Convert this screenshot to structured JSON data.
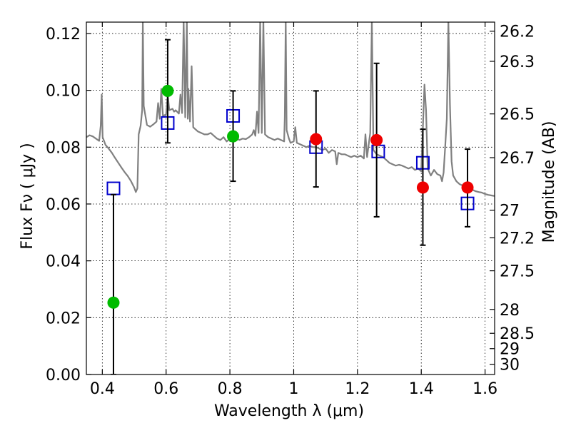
{
  "chart_data": {
    "type": "scatter",
    "xlabel": "Wavelength  λ (μm)",
    "ylabel": "Flux  Fν  ( μJy )",
    "y2label": "Magnitude (AB)",
    "xlim": [
      0.35,
      1.63
    ],
    "ylim": [
      0.0,
      0.124
    ],
    "grid": true,
    "x_ticks": [
      0.4,
      0.6,
      0.8,
      1.0,
      1.2,
      1.4,
      1.6
    ],
    "x_tick_labels": [
      "0.4",
      "0.6",
      "0.8",
      "1",
      "1.2",
      "1.4",
      "1.6"
    ],
    "y_ticks": [
      0.0,
      0.02,
      0.04,
      0.06,
      0.08,
      0.1,
      0.12
    ],
    "y_tick_labels": [
      "0.00",
      "0.02",
      "0.04",
      "0.06",
      "0.08",
      "0.10",
      "0.12"
    ],
    "right_axis_ticks": [
      {
        "label": "26.2",
        "flux": 0.1208
      },
      {
        "label": "26.3",
        "flux": 0.1102
      },
      {
        "label": "26.5",
        "flux": 0.0917
      },
      {
        "label": "26.7",
        "flux": 0.0763
      },
      {
        "label": "27",
        "flux": 0.0578
      },
      {
        "label": "27.2",
        "flux": 0.0481
      },
      {
        "label": "27.5",
        "flux": 0.0365
      },
      {
        "label": "28",
        "flux": 0.0229
      },
      {
        "label": "28.5",
        "flux": 0.0145
      },
      {
        "label": "29",
        "flux": 0.0091
      },
      {
        "label": "30",
        "flux": 0.0036
      }
    ],
    "series": [
      {
        "kind": "line",
        "color": "#808080",
        "points": [
          [
            0.35,
            0.0835
          ],
          [
            0.36,
            0.0842
          ],
          [
            0.37,
            0.0838
          ],
          [
            0.38,
            0.083
          ],
          [
            0.39,
            0.0822
          ],
          [
            0.395,
            0.0875
          ],
          [
            0.398,
            0.0985
          ],
          [
            0.401,
            0.0835
          ],
          [
            0.41,
            0.0808
          ],
          [
            0.42,
            0.0795
          ],
          [
            0.43,
            0.078
          ],
          [
            0.44,
            0.0762
          ],
          [
            0.45,
            0.0745
          ],
          [
            0.46,
            0.0728
          ],
          [
            0.47,
            0.0712
          ],
          [
            0.48,
            0.0698
          ],
          [
            0.49,
            0.068
          ],
          [
            0.5,
            0.0658
          ],
          [
            0.505,
            0.0642
          ],
          [
            0.51,
            0.0655
          ],
          [
            0.514,
            0.0845
          ],
          [
            0.52,
            0.0875
          ],
          [
            0.525,
            0.093
          ],
          [
            0.527,
            0.1245
          ],
          [
            0.53,
            0.0945
          ],
          [
            0.54,
            0.0878
          ],
          [
            0.55,
            0.0872
          ],
          [
            0.56,
            0.088
          ],
          [
            0.57,
            0.089
          ],
          [
            0.575,
            0.0955
          ],
          [
            0.58,
            0.09
          ],
          [
            0.585,
            0.1005
          ],
          [
            0.59,
            0.091
          ],
          [
            0.6,
            0.0915
          ],
          [
            0.605,
            0.0985
          ],
          [
            0.61,
            0.093
          ],
          [
            0.62,
            0.0935
          ],
          [
            0.625,
            0.0925
          ],
          [
            0.63,
            0.093
          ],
          [
            0.64,
            0.0918
          ],
          [
            0.645,
            0.0985
          ],
          [
            0.65,
            0.092
          ],
          [
            0.655,
            0.1245
          ],
          [
            0.66,
            0.0905
          ],
          [
            0.665,
            0.1245
          ],
          [
            0.668,
            0.09
          ],
          [
            0.67,
            0.1005
          ],
          [
            0.675,
            0.089
          ],
          [
            0.68,
            0.1085
          ],
          [
            0.685,
            0.087
          ],
          [
            0.69,
            0.0865
          ],
          [
            0.7,
            0.0855
          ],
          [
            0.71,
            0.085
          ],
          [
            0.72,
            0.0845
          ],
          [
            0.73,
            0.0845
          ],
          [
            0.74,
            0.085
          ],
          [
            0.75,
            0.084
          ],
          [
            0.76,
            0.083
          ],
          [
            0.77,
            0.0825
          ],
          [
            0.78,
            0.0835
          ],
          [
            0.79,
            0.082
          ],
          [
            0.8,
            0.083
          ],
          [
            0.81,
            0.0825
          ],
          [
            0.82,
            0.0832
          ],
          [
            0.83,
            0.0825
          ],
          [
            0.84,
            0.083
          ],
          [
            0.85,
            0.0828
          ],
          [
            0.86,
            0.0835
          ],
          [
            0.87,
            0.0845
          ],
          [
            0.875,
            0.086
          ],
          [
            0.88,
            0.084
          ],
          [
            0.885,
            0.0925
          ],
          [
            0.89,
            0.085
          ],
          [
            0.895,
            0.1245
          ],
          [
            0.9,
            0.085
          ],
          [
            0.905,
            0.1245
          ],
          [
            0.91,
            0.0845
          ],
          [
            0.92,
            0.0835
          ],
          [
            0.93,
            0.083
          ],
          [
            0.94,
            0.0825
          ],
          [
            0.95,
            0.083
          ],
          [
            0.96,
            0.0825
          ],
          [
            0.97,
            0.082
          ],
          [
            0.972,
            0.0905
          ],
          [
            0.975,
            0.1245
          ],
          [
            0.978,
            0.086
          ],
          [
            0.985,
            0.083
          ],
          [
            0.99,
            0.0815
          ],
          [
            1.0,
            0.082
          ],
          [
            1.005,
            0.087
          ],
          [
            1.01,
            0.0815
          ],
          [
            1.02,
            0.081
          ],
          [
            1.03,
            0.0805
          ],
          [
            1.04,
            0.08
          ],
          [
            1.05,
            0.0805
          ],
          [
            1.06,
            0.08
          ],
          [
            1.07,
            0.08
          ],
          [
            1.08,
            0.0795
          ],
          [
            1.09,
            0.079
          ],
          [
            1.1,
            0.0795
          ],
          [
            1.11,
            0.078
          ],
          [
            1.12,
            0.079
          ],
          [
            1.13,
            0.0785
          ],
          [
            1.135,
            0.074
          ],
          [
            1.14,
            0.078
          ],
          [
            1.15,
            0.0775
          ],
          [
            1.16,
            0.0775
          ],
          [
            1.17,
            0.077
          ],
          [
            1.18,
            0.0765
          ],
          [
            1.19,
            0.077
          ],
          [
            1.2,
            0.0765
          ],
          [
            1.21,
            0.077
          ],
          [
            1.22,
            0.076
          ],
          [
            1.225,
            0.0845
          ],
          [
            1.23,
            0.0765
          ],
          [
            1.24,
            0.085
          ],
          [
            1.245,
            0.1245
          ],
          [
            1.25,
            0.079
          ],
          [
            1.26,
            0.0775
          ],
          [
            1.27,
            0.077
          ],
          [
            1.28,
            0.0765
          ],
          [
            1.29,
            0.0755
          ],
          [
            1.3,
            0.0745
          ],
          [
            1.31,
            0.074
          ],
          [
            1.32,
            0.0735
          ],
          [
            1.33,
            0.0738
          ],
          [
            1.34,
            0.0735
          ],
          [
            1.35,
            0.073
          ],
          [
            1.36,
            0.0725
          ],
          [
            1.37,
            0.073
          ],
          [
            1.38,
            0.072
          ],
          [
            1.39,
            0.0725
          ],
          [
            1.4,
            0.0715
          ],
          [
            1.405,
            0.087
          ],
          [
            1.41,
            0.102
          ],
          [
            1.415,
            0.093
          ],
          [
            1.42,
            0.0725
          ],
          [
            1.43,
            0.07
          ],
          [
            1.44,
            0.072
          ],
          [
            1.45,
            0.0705
          ],
          [
            1.46,
            0.07
          ],
          [
            1.465,
            0.068
          ],
          [
            1.47,
            0.071
          ],
          [
            1.475,
            0.08
          ],
          [
            1.48,
            0.09
          ],
          [
            1.485,
            0.1245
          ],
          [
            1.49,
            0.095
          ],
          [
            1.495,
            0.075
          ],
          [
            1.5,
            0.07
          ],
          [
            1.51,
            0.068
          ],
          [
            1.52,
            0.067
          ],
          [
            1.53,
            0.0665
          ],
          [
            1.54,
            0.066
          ],
          [
            1.55,
            0.0655
          ],
          [
            1.56,
            0.065
          ],
          [
            1.57,
            0.0645
          ],
          [
            1.58,
            0.0642
          ],
          [
            1.59,
            0.064
          ],
          [
            1.6,
            0.0635
          ],
          [
            1.61,
            0.0632
          ],
          [
            1.62,
            0.063
          ],
          [
            1.63,
            0.0628
          ]
        ]
      },
      {
        "kind": "open-square",
        "color": "#0000cc",
        "points": [
          [
            0.435,
            0.0655
          ],
          [
            0.605,
            0.0885
          ],
          [
            0.81,
            0.091
          ],
          [
            1.07,
            0.08
          ],
          [
            1.265,
            0.0785
          ],
          [
            1.405,
            0.0745
          ],
          [
            1.545,
            0.0602
          ]
        ]
      },
      {
        "kind": "filled-circle",
        "color": "#00bb00",
        "points": [
          {
            "x": 0.435,
            "y": 0.0253,
            "err_lo": 0.0253,
            "err_hi": 0.038
          },
          {
            "x": 0.605,
            "y": 0.0998,
            "err_lo": 0.0183,
            "err_hi": 0.018
          },
          {
            "x": 0.81,
            "y": 0.0838,
            "err_lo": 0.0158,
            "err_hi": 0.016
          }
        ]
      },
      {
        "kind": "filled-circle",
        "color": "#ee0000",
        "points": [
          {
            "x": 1.07,
            "y": 0.0828,
            "err_lo": 0.0168,
            "err_hi": 0.017
          },
          {
            "x": 1.26,
            "y": 0.0825,
            "err_lo": 0.027,
            "err_hi": 0.027
          },
          {
            "x": 1.405,
            "y": 0.0658,
            "err_lo": 0.0203,
            "err_hi": 0.0205
          },
          {
            "x": 1.545,
            "y": 0.0658,
            "err_lo": 0.0138,
            "err_hi": 0.0135
          }
        ]
      }
    ]
  }
}
